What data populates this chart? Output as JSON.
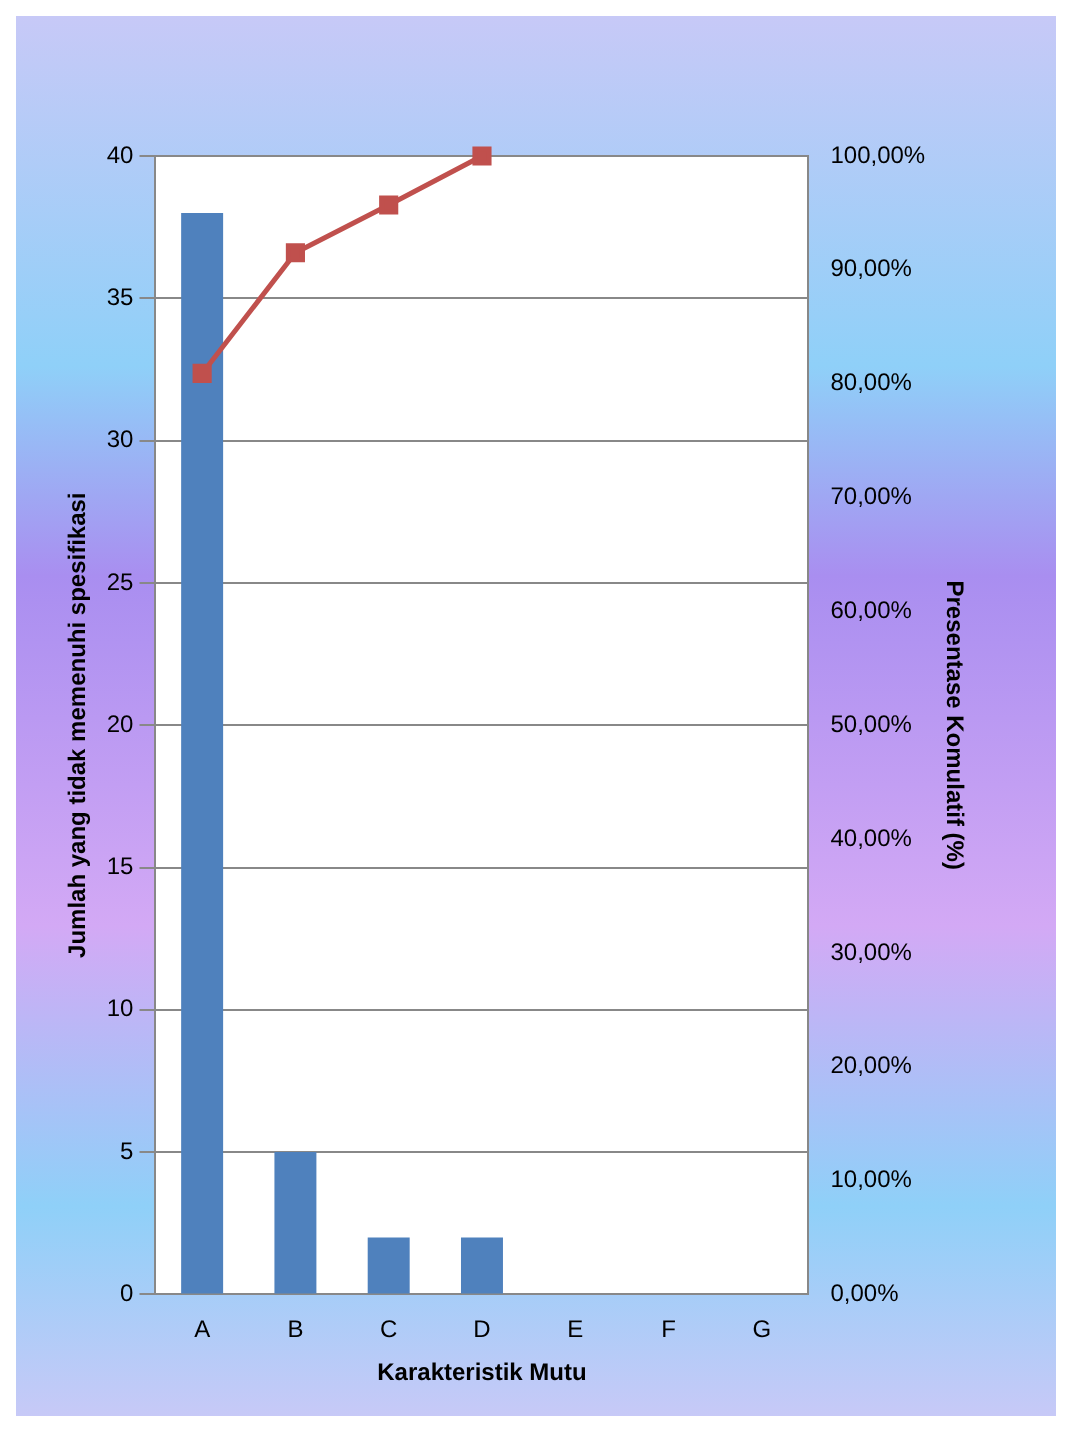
{
  "chart_data": {
    "type": "bar",
    "xlabel": "Karakteristik Mutu",
    "ylabel": "Jumlah yang tidak memenuhi spesifikasi",
    "y2label": "Presentase Komulatif (%)",
    "categories": [
      "A",
      "B",
      "C",
      "D",
      "E",
      "F",
      "G"
    ],
    "series": [
      {
        "color": "#4f81bd",
        "values": [
          38,
          5,
          2,
          2,
          0,
          0,
          0
        ]
      },
      {
        "type": "line",
        "axis": "y2",
        "color": "#c0504d",
        "marker": "square",
        "values": [
          80.9,
          91.5,
          95.7,
          100,
          null,
          null,
          null
        ]
      }
    ],
    "ylim": [
      0,
      40
    ],
    "yticks": [
      0,
      5,
      10,
      15,
      20,
      25,
      30,
      35,
      40
    ],
    "y2lim": [
      0,
      100
    ],
    "y2ticks": [
      {
        "value": 0,
        "label": "0,00%"
      },
      {
        "value": 10,
        "label": "10,00%"
      },
      {
        "value": 20,
        "label": "20,00%"
      },
      {
        "value": 30,
        "label": "30,00%"
      },
      {
        "value": 40,
        "label": "40,00%"
      },
      {
        "value": 50,
        "label": "50,00%"
      },
      {
        "value": 60,
        "label": "60,00%"
      },
      {
        "value": 70,
        "label": "70,00%"
      },
      {
        "value": 80,
        "label": "80,00%"
      },
      {
        "value": 90,
        "label": "90,00%"
      },
      {
        "value": 100,
        "label": "100,00%"
      }
    ],
    "grid": "y",
    "legend": false
  }
}
